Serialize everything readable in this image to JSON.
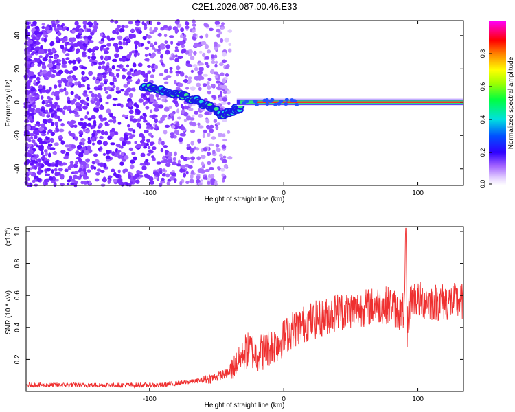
{
  "chart_data": [
    {
      "type": "heatmap",
      "title": "C2E1.2026.087.00.46.E33",
      "xlabel": "Height of straight line (km)",
      "ylabel": "Frequency (Hz)",
      "xlim": [
        -192,
        134
      ],
      "ylim": [
        -50,
        49
      ],
      "xticks": [
        -100,
        0,
        100
      ],
      "yticks": [
        -40,
        -20,
        0,
        20,
        40
      ],
      "xtick_labels": [
        "-100",
        "0",
        "100"
      ],
      "ytick_labels": [
        "-40",
        "-20",
        "0",
        "20",
        "40"
      ],
      "colorbar": {
        "label": "Normalized spectral amplitude",
        "range": [
          0,
          1
        ],
        "ticks": [
          0.0,
          0.2,
          0.4,
          0.6,
          0.8
        ],
        "tick_labels": [
          "0.0",
          "0.2",
          "0.4",
          "0.6",
          "0.8"
        ],
        "colormap": "rainbow (white-violet-blue-cyan-green-yellow-orange-red-magenta)"
      },
      "features": {
        "noise_region_x": [
          -192,
          -40
        ],
        "drifting_signal": [
          {
            "x": -105,
            "y": 10
          },
          {
            "x": -95,
            "y": 8
          },
          {
            "x": -85,
            "y": 6
          },
          {
            "x": -75,
            "y": 4
          },
          {
            "x": -65,
            "y": 1
          },
          {
            "x": -55,
            "y": -3
          },
          {
            "x": -45,
            "y": -8
          },
          {
            "x": -38,
            "y": -5
          },
          {
            "x": -32,
            "y": -3
          }
        ],
        "steady_signal": {
          "x_start": -35,
          "x_end": 134,
          "y": 0
        }
      },
      "grid": false
    },
    {
      "type": "line",
      "xlabel": "Height of straight line (km)",
      "ylabel": "SNR (10 * v/v)",
      "y_multiplier_label": "(x10",
      "y_multiplier_exponent": "4",
      "y_multiplier_close": ")",
      "xlim": [
        -192,
        134
      ],
      "ylim": [
        0,
        1.03
      ],
      "xticks": [
        -100,
        0,
        100
      ],
      "yticks": [
        0.2,
        0.4,
        0.6,
        0.8,
        1.0
      ],
      "xtick_labels": [
        "-100",
        "0",
        "100"
      ],
      "ytick_labels": [
        "0.2",
        "0.4",
        "0.6",
        "0.8",
        "1.0"
      ],
      "color": "#ef3030",
      "series": [
        {
          "name": "",
          "x": [
            -192,
            -170,
            -150,
            -130,
            -110,
            -90,
            -80,
            -70,
            -60,
            -50,
            -40,
            -35,
            -30,
            -25,
            -20,
            -15,
            -10,
            -5,
            0,
            5,
            10,
            20,
            30,
            40,
            50,
            60,
            70,
            80,
            85,
            90,
            91,
            92,
            95,
            100,
            110,
            120,
            134
          ],
          "y": [
            0.04,
            0.04,
            0.04,
            0.04,
            0.04,
            0.04,
            0.05,
            0.06,
            0.07,
            0.09,
            0.12,
            0.18,
            0.24,
            0.26,
            0.24,
            0.25,
            0.28,
            0.3,
            0.33,
            0.38,
            0.4,
            0.44,
            0.46,
            0.5,
            0.51,
            0.52,
            0.54,
            0.54,
            0.5,
            0.5,
            1.0,
            0.42,
            0.58,
            0.57,
            0.56,
            0.56,
            0.56
          ]
        }
      ],
      "grid": false
    }
  ]
}
